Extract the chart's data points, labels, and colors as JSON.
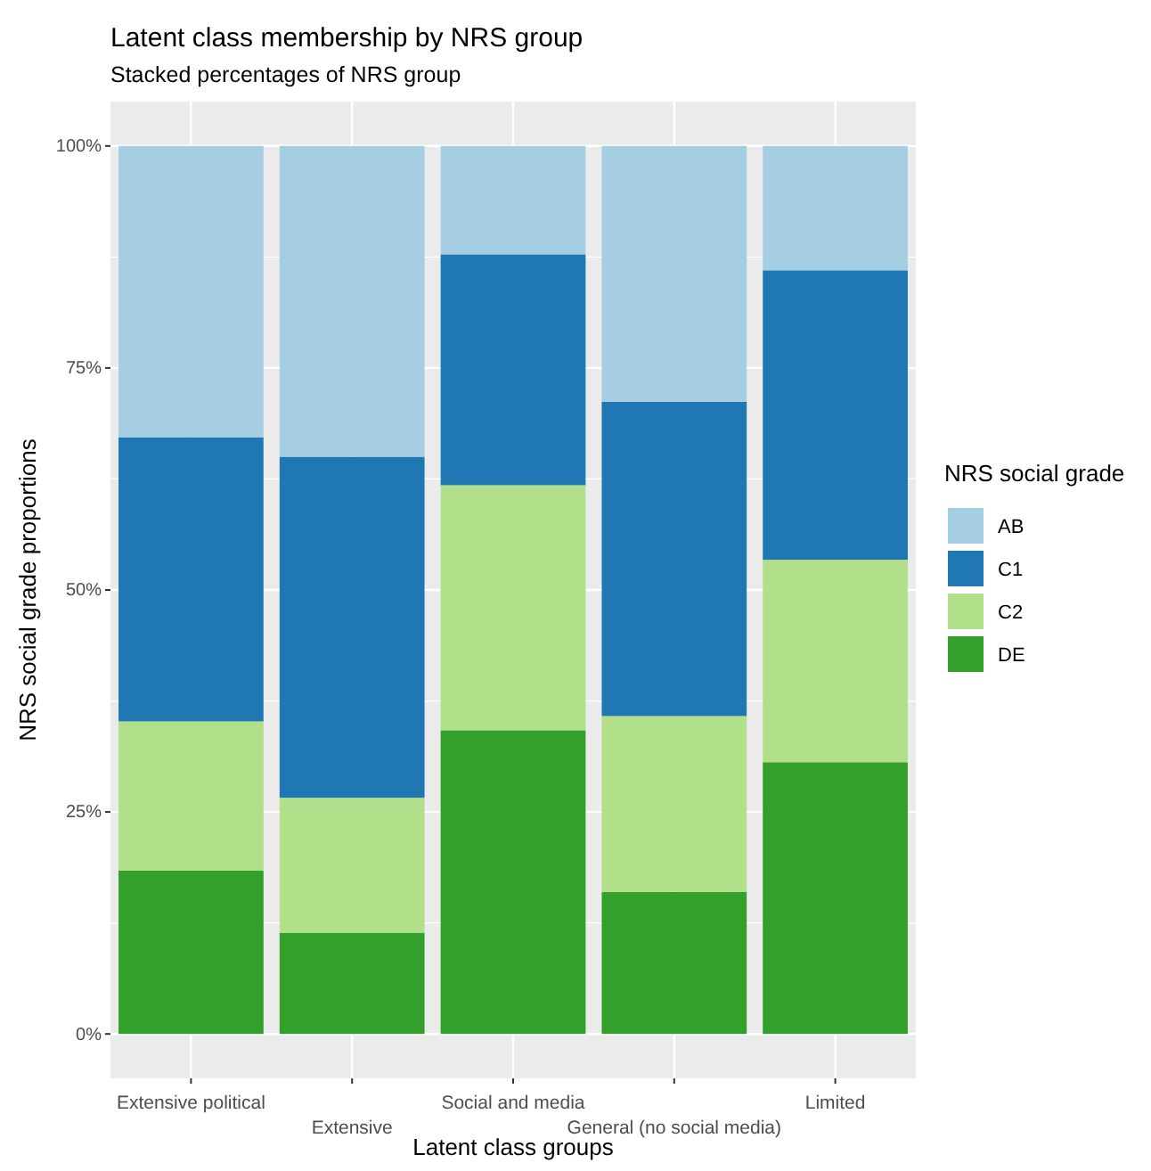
{
  "chart_data": {
    "type": "bar",
    "title": "Latent class membership by NRS group",
    "subtitle": "Stacked percentages of NRS group",
    "xlabel": "Latent class groups",
    "ylabel": "NRS social grade proportions",
    "legend_title": "NRS social grade",
    "categories": [
      "Extensive political",
      "Extensive",
      "Social and media",
      "General (no social media)",
      "Limited"
    ],
    "series": [
      {
        "name": "DE",
        "color": "#33a02c",
        "values": [
          18.4,
          11.4,
          34.2,
          16,
          30.6
        ]
      },
      {
        "name": "C2",
        "color": "#b2df8a",
        "values": [
          16.8,
          15.2,
          27.6,
          19.8,
          22.8
        ]
      },
      {
        "name": "C1",
        "color": "#1f78b4",
        "values": [
          32,
          38.4,
          26,
          35.4,
          32.6
        ]
      },
      {
        "name": "AB",
        "color": "#a6cee3",
        "values": [
          32.8,
          35,
          12.2,
          28.8,
          14
        ]
      }
    ],
    "stacked": true,
    "ylim": [
      -5,
      105
    ],
    "yticks": [
      {
        "value": 0,
        "label": "0%"
      },
      {
        "value": 25,
        "label": "25%"
      },
      {
        "value": 50,
        "label": "50%"
      },
      {
        "value": 75,
        "label": "75%"
      },
      {
        "value": 100,
        "label": "100%"
      }
    ],
    "grid": true,
    "legend": "right"
  }
}
